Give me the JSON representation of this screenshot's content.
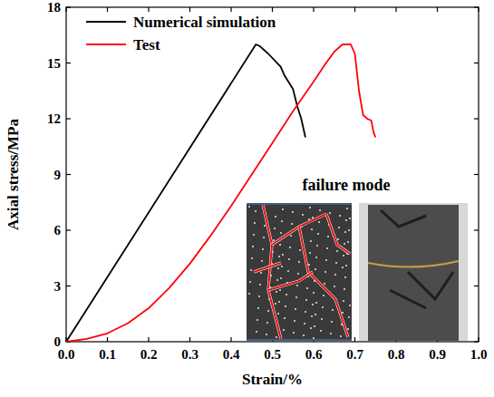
{
  "chart_data": {
    "type": "line",
    "x_label": "Strain/%",
    "y_label": "Axial stress/MPa",
    "annotation": "failure mode",
    "legend": "top-left",
    "xlim": [
      0,
      1.0
    ],
    "ylim": [
      0,
      18
    ],
    "xticks": [
      {
        "value": 0,
        "label": "0.0"
      },
      {
        "value": 0.1,
        "label": "0.1"
      },
      {
        "value": 0.2,
        "label": "0.2"
      },
      {
        "value": 0.3,
        "label": "0.3"
      },
      {
        "value": 0.4,
        "label": "0.4"
      },
      {
        "value": 0.5,
        "label": "0.5"
      },
      {
        "value": 0.6,
        "label": "0.6"
      },
      {
        "value": 0.7,
        "label": "0.7"
      },
      {
        "value": 0.8,
        "label": "0.8"
      },
      {
        "value": 0.9,
        "label": "0.9"
      },
      {
        "value": 1.0,
        "label": "1.0"
      }
    ],
    "yticks": [
      0,
      3,
      6,
      9,
      12,
      15,
      18
    ],
    "series": [
      {
        "name": "Numerical simulation",
        "color": "#000000",
        "x": [
          0,
          0.46,
          0.47,
          0.49,
          0.52,
          0.53,
          0.55,
          0.56,
          0.57,
          0.58
        ],
        "values": [
          0,
          16.0,
          15.9,
          15.5,
          14.8,
          14.3,
          13.6,
          12.7,
          12.0,
          11.0
        ]
      },
      {
        "name": "Test",
        "color": "#ff0000",
        "x": [
          0,
          0.05,
          0.1,
          0.15,
          0.2,
          0.25,
          0.3,
          0.35,
          0.4,
          0.45,
          0.5,
          0.55,
          0.6,
          0.63,
          0.65,
          0.67,
          0.69,
          0.7,
          0.71,
          0.72,
          0.73,
          0.74,
          0.745,
          0.75
        ],
        "values": [
          0,
          0.15,
          0.45,
          1.0,
          1.8,
          2.9,
          4.2,
          5.7,
          7.3,
          9.0,
          10.7,
          12.4,
          14.0,
          15.0,
          15.6,
          16.0,
          16.0,
          15.5,
          13.5,
          12.2,
          12.0,
          11.9,
          11.3,
          11.0
        ]
      }
    ]
  }
}
